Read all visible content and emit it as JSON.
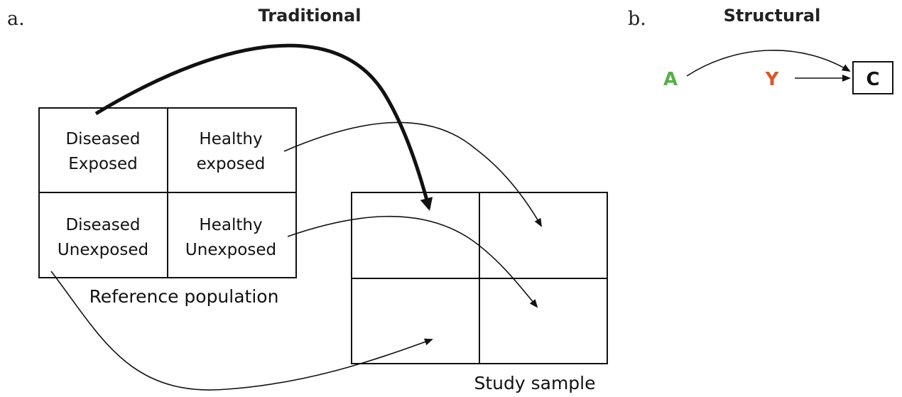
{
  "panel_a": {
    "letter": "a.",
    "title": "Traditional",
    "reference_population": {
      "caption": "Reference population",
      "cells": [
        [
          "Diseased",
          "Exposed"
        ],
        [
          "Healthy",
          "exposed"
        ],
        [
          "Diseased",
          "Unexposed"
        ],
        [
          "Healthy",
          "Unexposed"
        ]
      ]
    },
    "study_sample": {
      "caption": "Study sample"
    }
  },
  "panel_b": {
    "letter": "b.",
    "title": "Structural",
    "nodes": {
      "a": "A",
      "y": "Y",
      "c": "C"
    },
    "colors": {
      "a": "#5aad4a",
      "y": "#d65a2c",
      "c": "#111111"
    }
  }
}
